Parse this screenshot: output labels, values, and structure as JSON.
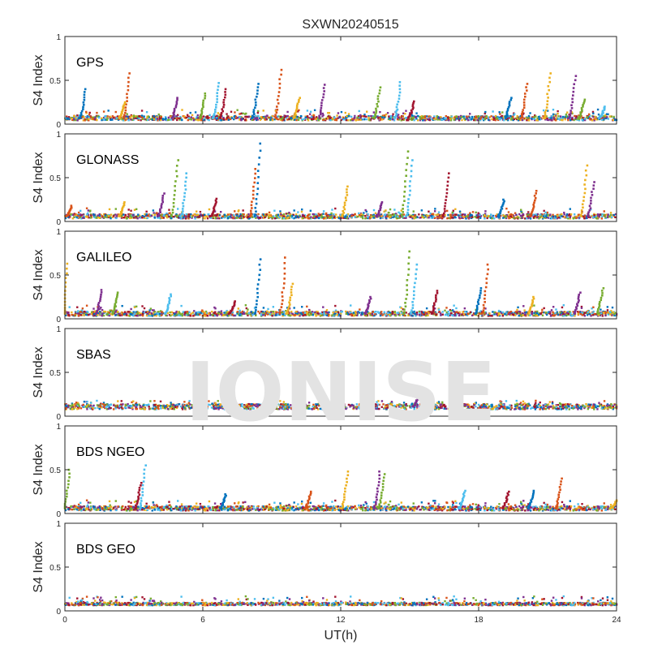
{
  "chart_data": {
    "type": "scatter",
    "title": "SXWN20240515",
    "xlabel": "UT(h)",
    "ylabel": "S4 Index",
    "xlim": [
      0,
      24
    ],
    "ylim": [
      0,
      1
    ],
    "x_ticks": [
      "0",
      "6",
      "12",
      "18",
      "24"
    ],
    "y_ticks": [
      "0",
      "0.5",
      "1"
    ],
    "watermark": "IONISE",
    "series_colors": [
      "#0072BD",
      "#D95319",
      "#EDB120",
      "#7E2F8E",
      "#77AC30",
      "#4DBEEE",
      "#A2142F"
    ],
    "panels": [
      {
        "name": "GPS",
        "baseline": 0.07,
        "spikes": [
          {
            "x": 0.9,
            "y": 0.4
          },
          {
            "x": 2.8,
            "y": 0.58
          },
          {
            "x": 2.6,
            "y": 0.25
          },
          {
            "x": 4.9,
            "y": 0.3
          },
          {
            "x": 6.1,
            "y": 0.35
          },
          {
            "x": 6.7,
            "y": 0.47
          },
          {
            "x": 7.0,
            "y": 0.4
          },
          {
            "x": 8.4,
            "y": 0.46
          },
          {
            "x": 9.4,
            "y": 0.62
          },
          {
            "x": 10.2,
            "y": 0.3
          },
          {
            "x": 11.3,
            "y": 0.45
          },
          {
            "x": 13.7,
            "y": 0.42
          },
          {
            "x": 14.6,
            "y": 0.48
          },
          {
            "x": 15.2,
            "y": 0.26
          },
          {
            "x": 19.4,
            "y": 0.3
          },
          {
            "x": 20.1,
            "y": 0.46
          },
          {
            "x": 21.1,
            "y": 0.58
          },
          {
            "x": 22.2,
            "y": 0.55
          },
          {
            "x": 22.6,
            "y": 0.28
          },
          {
            "x": 23.5,
            "y": 0.2
          }
        ]
      },
      {
        "name": "GLONASS",
        "baseline": 0.06,
        "spikes": [
          {
            "x": 0.3,
            "y": 0.18
          },
          {
            "x": 2.6,
            "y": 0.22
          },
          {
            "x": 4.3,
            "y": 0.32
          },
          {
            "x": 4.9,
            "y": 0.7
          },
          {
            "x": 5.3,
            "y": 0.55
          },
          {
            "x": 6.6,
            "y": 0.26
          },
          {
            "x": 8.5,
            "y": 0.89
          },
          {
            "x": 8.3,
            "y": 0.6
          },
          {
            "x": 12.3,
            "y": 0.4
          },
          {
            "x": 13.8,
            "y": 0.22
          },
          {
            "x": 14.9,
            "y": 0.8
          },
          {
            "x": 15.1,
            "y": 0.7
          },
          {
            "x": 16.7,
            "y": 0.55
          },
          {
            "x": 19.1,
            "y": 0.25
          },
          {
            "x": 20.5,
            "y": 0.35
          },
          {
            "x": 22.7,
            "y": 0.64
          },
          {
            "x": 23.0,
            "y": 0.45
          }
        ]
      },
      {
        "name": "GALILEO",
        "baseline": 0.06,
        "spikes": [
          {
            "x": 0.1,
            "y": 0.63
          },
          {
            "x": 1.6,
            "y": 0.33
          },
          {
            "x": 2.3,
            "y": 0.3
          },
          {
            "x": 4.6,
            "y": 0.28
          },
          {
            "x": 7.4,
            "y": 0.2
          },
          {
            "x": 8.5,
            "y": 0.68
          },
          {
            "x": 9.6,
            "y": 0.7
          },
          {
            "x": 9.9,
            "y": 0.4
          },
          {
            "x": 13.3,
            "y": 0.25
          },
          {
            "x": 15.0,
            "y": 0.77
          },
          {
            "x": 15.3,
            "y": 0.62
          },
          {
            "x": 16.2,
            "y": 0.32
          },
          {
            "x": 18.1,
            "y": 0.35
          },
          {
            "x": 18.4,
            "y": 0.62
          },
          {
            "x": 20.4,
            "y": 0.25
          },
          {
            "x": 22.4,
            "y": 0.3
          },
          {
            "x": 23.4,
            "y": 0.35
          }
        ]
      },
      {
        "name": "SBAS",
        "baseline": 0.11,
        "spikes": [
          {
            "x": 15.4,
            "y": 0.24
          }
        ]
      },
      {
        "name": "BDS NGEO",
        "baseline": 0.06,
        "spikes": [
          {
            "x": 0.2,
            "y": 0.5
          },
          {
            "x": 3.5,
            "y": 0.55
          },
          {
            "x": 3.3,
            "y": 0.35
          },
          {
            "x": 7.0,
            "y": 0.22
          },
          {
            "x": 10.7,
            "y": 0.25
          },
          {
            "x": 12.3,
            "y": 0.48
          },
          {
            "x": 13.7,
            "y": 0.48
          },
          {
            "x": 13.9,
            "y": 0.45
          },
          {
            "x": 17.4,
            "y": 0.26
          },
          {
            "x": 19.3,
            "y": 0.25
          },
          {
            "x": 20.4,
            "y": 0.26
          },
          {
            "x": 21.6,
            "y": 0.4
          },
          {
            "x": 24.0,
            "y": 0.15
          }
        ]
      },
      {
        "name": "BDS GEO",
        "baseline": 0.08,
        "spikes": []
      }
    ]
  }
}
